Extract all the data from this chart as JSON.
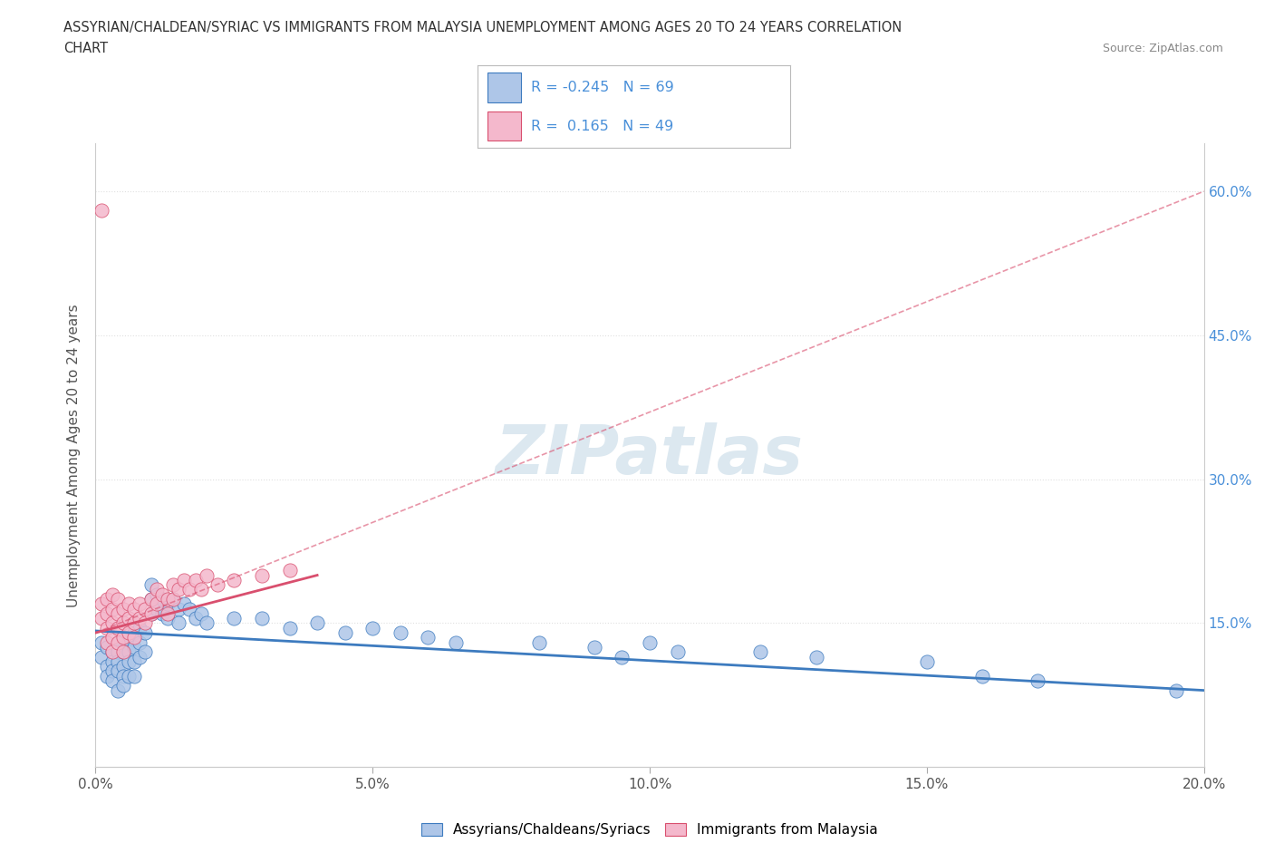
{
  "title_line1": "ASSYRIAN/CHALDEAN/SYRIAC VS IMMIGRANTS FROM MALAYSIA UNEMPLOYMENT AMONG AGES 20 TO 24 YEARS CORRELATION",
  "title_line2": "CHART",
  "source_text": "Source: ZipAtlas.com",
  "xlabel_ticks": [
    "0.0%",
    "5.0%",
    "10.0%",
    "15.0%",
    "20.0%"
  ],
  "xlabel_values": [
    0.0,
    0.05,
    0.1,
    0.15,
    0.2
  ],
  "ylabel_ticks": [
    "15.0%",
    "30.0%",
    "45.0%",
    "60.0%"
  ],
  "ylabel_values": [
    0.15,
    0.3,
    0.45,
    0.6
  ],
  "ylabel_label": "Unemployment Among Ages 20 to 24 years",
  "legend_label_bottom1": "Assyrians/Chaldeans/Syriacs",
  "legend_label_bottom2": "Immigrants from Malaysia",
  "R_blue": -0.245,
  "N_blue": 69,
  "R_pink": 0.165,
  "N_pink": 49,
  "blue_color": "#aec6e8",
  "pink_color": "#f4b8cc",
  "line_blue_color": "#3d7bbf",
  "line_pink_color": "#d94f6e",
  "watermark_color": "#dce8f0",
  "title_color": "#333333",
  "axis_label_color": "#555555",
  "tick_color": "#4a90d9",
  "source_color": "#888888",
  "grid_color": "#e0e0e0",
  "background_color": "#ffffff",
  "blue_scatter": [
    [
      0.001,
      0.13
    ],
    [
      0.001,
      0.115
    ],
    [
      0.002,
      0.125
    ],
    [
      0.002,
      0.105
    ],
    [
      0.002,
      0.095
    ],
    [
      0.003,
      0.12
    ],
    [
      0.003,
      0.11
    ],
    [
      0.003,
      0.1
    ],
    [
      0.003,
      0.09
    ],
    [
      0.004,
      0.13
    ],
    [
      0.004,
      0.12
    ],
    [
      0.004,
      0.11
    ],
    [
      0.004,
      0.1
    ],
    [
      0.004,
      0.08
    ],
    [
      0.005,
      0.135
    ],
    [
      0.005,
      0.12
    ],
    [
      0.005,
      0.105
    ],
    [
      0.005,
      0.095
    ],
    [
      0.005,
      0.085
    ],
    [
      0.006,
      0.13
    ],
    [
      0.006,
      0.12
    ],
    [
      0.006,
      0.11
    ],
    [
      0.006,
      0.095
    ],
    [
      0.007,
      0.14
    ],
    [
      0.007,
      0.125
    ],
    [
      0.007,
      0.11
    ],
    [
      0.007,
      0.095
    ],
    [
      0.008,
      0.145
    ],
    [
      0.008,
      0.13
    ],
    [
      0.008,
      0.115
    ],
    [
      0.009,
      0.14
    ],
    [
      0.009,
      0.12
    ],
    [
      0.01,
      0.19
    ],
    [
      0.01,
      0.175
    ],
    [
      0.01,
      0.16
    ],
    [
      0.011,
      0.18
    ],
    [
      0.011,
      0.165
    ],
    [
      0.012,
      0.175
    ],
    [
      0.012,
      0.16
    ],
    [
      0.013,
      0.17
    ],
    [
      0.013,
      0.155
    ],
    [
      0.014,
      0.175
    ],
    [
      0.015,
      0.165
    ],
    [
      0.015,
      0.15
    ],
    [
      0.016,
      0.17
    ],
    [
      0.017,
      0.165
    ],
    [
      0.018,
      0.155
    ],
    [
      0.019,
      0.16
    ],
    [
      0.02,
      0.15
    ],
    [
      0.025,
      0.155
    ],
    [
      0.03,
      0.155
    ],
    [
      0.035,
      0.145
    ],
    [
      0.04,
      0.15
    ],
    [
      0.045,
      0.14
    ],
    [
      0.05,
      0.145
    ],
    [
      0.055,
      0.14
    ],
    [
      0.06,
      0.135
    ],
    [
      0.065,
      0.13
    ],
    [
      0.08,
      0.13
    ],
    [
      0.09,
      0.125
    ],
    [
      0.095,
      0.115
    ],
    [
      0.1,
      0.13
    ],
    [
      0.105,
      0.12
    ],
    [
      0.12,
      0.12
    ],
    [
      0.13,
      0.115
    ],
    [
      0.15,
      0.11
    ],
    [
      0.16,
      0.095
    ],
    [
      0.17,
      0.09
    ],
    [
      0.195,
      0.08
    ]
  ],
  "pink_scatter": [
    [
      0.001,
      0.58
    ],
    [
      0.001,
      0.17
    ],
    [
      0.001,
      0.155
    ],
    [
      0.002,
      0.175
    ],
    [
      0.002,
      0.16
    ],
    [
      0.002,
      0.145
    ],
    [
      0.002,
      0.13
    ],
    [
      0.003,
      0.18
    ],
    [
      0.003,
      0.165
    ],
    [
      0.003,
      0.15
    ],
    [
      0.003,
      0.135
    ],
    [
      0.003,
      0.12
    ],
    [
      0.004,
      0.175
    ],
    [
      0.004,
      0.16
    ],
    [
      0.004,
      0.145
    ],
    [
      0.004,
      0.13
    ],
    [
      0.005,
      0.165
    ],
    [
      0.005,
      0.15
    ],
    [
      0.005,
      0.135
    ],
    [
      0.005,
      0.12
    ],
    [
      0.006,
      0.17
    ],
    [
      0.006,
      0.155
    ],
    [
      0.006,
      0.14
    ],
    [
      0.007,
      0.165
    ],
    [
      0.007,
      0.15
    ],
    [
      0.007,
      0.135
    ],
    [
      0.008,
      0.17
    ],
    [
      0.008,
      0.155
    ],
    [
      0.009,
      0.165
    ],
    [
      0.009,
      0.15
    ],
    [
      0.01,
      0.175
    ],
    [
      0.01,
      0.16
    ],
    [
      0.011,
      0.185
    ],
    [
      0.011,
      0.17
    ],
    [
      0.012,
      0.18
    ],
    [
      0.013,
      0.175
    ],
    [
      0.013,
      0.16
    ],
    [
      0.014,
      0.19
    ],
    [
      0.014,
      0.175
    ],
    [
      0.015,
      0.185
    ],
    [
      0.016,
      0.195
    ],
    [
      0.017,
      0.185
    ],
    [
      0.018,
      0.195
    ],
    [
      0.019,
      0.185
    ],
    [
      0.02,
      0.2
    ],
    [
      0.022,
      0.19
    ],
    [
      0.025,
      0.195
    ],
    [
      0.03,
      0.2
    ],
    [
      0.035,
      0.205
    ]
  ],
  "blue_line": {
    "x0": 0.0,
    "y0": 0.142,
    "x1": 0.2,
    "y1": 0.08
  },
  "pink_line_solid": {
    "x0": 0.0,
    "y0": 0.14,
    "x1": 0.04,
    "y1": 0.2
  },
  "pink_line_dashed": {
    "x0": 0.0,
    "y0": 0.14,
    "x1": 0.2,
    "y1": 0.6
  },
  "xmin": 0.0,
  "xmax": 0.2,
  "ymin": 0.0,
  "ymax": 0.65
}
